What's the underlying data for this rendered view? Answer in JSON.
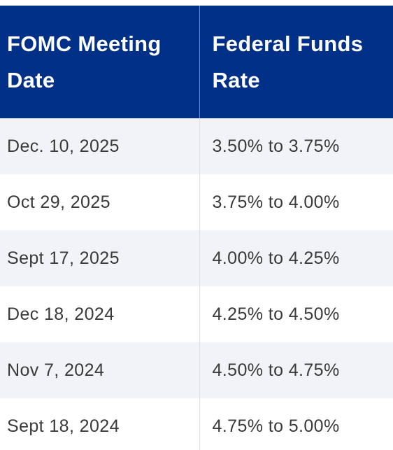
{
  "table": {
    "headers": {
      "date": [
        "FOMC Meeting",
        "Date"
      ],
      "rate": [
        "Federal Funds",
        "Rate"
      ]
    },
    "rows": [
      {
        "date": "Dec. 10, 2025",
        "rate": "3.50% to 3.75%"
      },
      {
        "date": "Oct 29, 2025",
        "rate": "3.75% to 4.00%"
      },
      {
        "date": "Sept 17, 2025",
        "rate": "4.00% to 4.25%"
      },
      {
        "date": "Dec 18, 2024",
        "rate": "4.25% to 4.50%"
      },
      {
        "date": "Nov 7, 2024",
        "rate": "4.50% to 4.75%"
      },
      {
        "date": "Sept 18, 2024",
        "rate": "4.75% to 5.00%"
      }
    ]
  },
  "colors": {
    "header_bg": "#003087",
    "header_text": "#ffffff",
    "row_alt_bg": "#f2f3f8",
    "row_bg": "#ffffff",
    "cell_text": "#3a3a3a"
  }
}
